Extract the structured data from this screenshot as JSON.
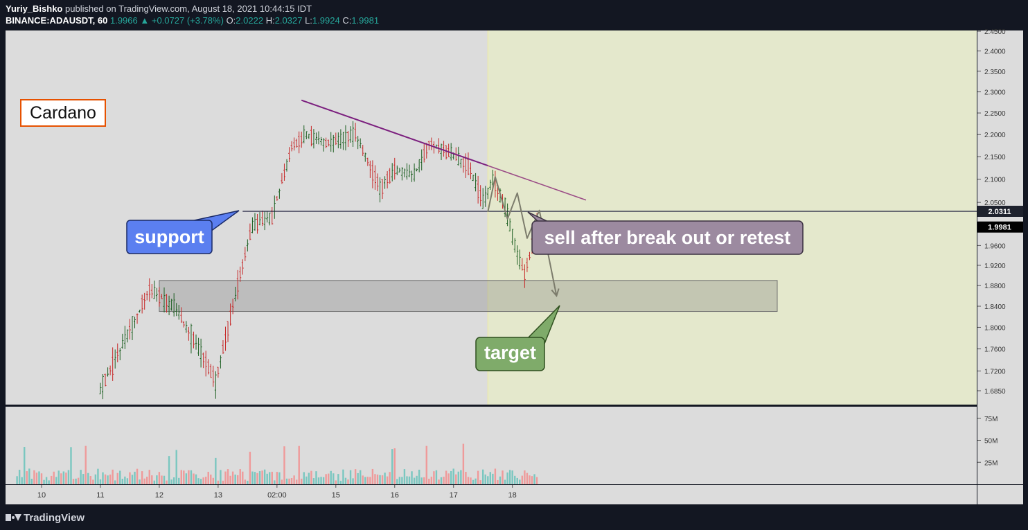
{
  "header": {
    "author": "Yuriy_Bishko",
    "published_text": "published on TradingView.com, August 18, 2021 10:44:15 IDT",
    "symbol": "BINANCE:ADAUSDT, 60",
    "last": "1.9966",
    "change": "▲ +0.0727 (+3.78%)",
    "o_label": "O:",
    "o": "2.0222",
    "h_label": "H:",
    "h": "2.0327",
    "l_label": "L:",
    "l": "1.9924",
    "c_label": "C:",
    "c": "1.9981"
  },
  "footer": {
    "brand": "TradingView"
  },
  "colors": {
    "background": "#131722",
    "pane": "#dcdcdc",
    "highlight": "#e4e8cc",
    "up": "#1b5e20",
    "down": "#c62828",
    "vol_up": "#7ac7c0",
    "vol_down": "#ef9a9a",
    "trendline": "#7b1f7e",
    "support_line": "#1e1e3c",
    "cardano_border": "#e65100",
    "support_bubble": "#5b7ff0",
    "sell_bubble": "#9c8aa0",
    "target_bubble": "#7fab6a"
  },
  "chart_data": {
    "type": "candlestick",
    "symbol": "BINANCE:ADAUSDT",
    "interval": "60",
    "price_axis": {
      "scale": "log",
      "ticks": [
        "2.4500",
        "2.4000",
        "2.3500",
        "2.3000",
        "2.2500",
        "2.2000",
        "2.1500",
        "2.1000",
        "2.0500",
        "1.9600",
        "1.9200",
        "1.8800",
        "1.8400",
        "1.8000",
        "1.7600",
        "1.7200",
        "1.6850"
      ],
      "range": [
        1.675,
        2.46
      ],
      "line_value_label": "2.0311",
      "last_price_label": "1.9981"
    },
    "volume_axis": {
      "ticks": [
        "75M",
        "50M",
        "25M"
      ],
      "range": [
        0,
        90
      ]
    },
    "time_axis": {
      "ticks": [
        "10",
        "11",
        "12",
        "13",
        "02:00",
        "15",
        "16",
        "17",
        "18"
      ]
    },
    "anchors": [
      {
        "t": "2021-08-11 00:00",
        "price": 1.685
      },
      {
        "t": "2021-08-11 20:00",
        "price": 1.87
      },
      {
        "t": "2021-08-12 06:00",
        "price": 1.84
      },
      {
        "t": "2021-08-12 16:00",
        "price": 1.76
      },
      {
        "t": "2021-08-12 23:00",
        "price": 1.7
      },
      {
        "t": "2021-08-13 07:00",
        "price": 1.86
      },
      {
        "t": "2021-08-13 14:00",
        "price": 2.0
      },
      {
        "t": "2021-08-13 22:00",
        "price": 2.02
      },
      {
        "t": "2021-08-14 06:00",
        "price": 2.17
      },
      {
        "t": "2021-08-14 12:00",
        "price": 2.2
      },
      {
        "t": "2021-08-14 20:00",
        "price": 2.18
      },
      {
        "t": "2021-08-15 08:00",
        "price": 2.2
      },
      {
        "t": "2021-08-15 18:00",
        "price": 2.08
      },
      {
        "t": "2021-08-16 00:00",
        "price": 2.12
      },
      {
        "t": "2021-08-16 08:00",
        "price": 2.11
      },
      {
        "t": "2021-08-16 14:00",
        "price": 2.18
      },
      {
        "t": "2021-08-16 22:00",
        "price": 2.16
      },
      {
        "t": "2021-08-17 06:00",
        "price": 2.13
      },
      {
        "t": "2021-08-17 12:00",
        "price": 2.05
      },
      {
        "t": "2021-08-17 16:00",
        "price": 2.1
      },
      {
        "t": "2021-08-17 21:00",
        "price": 2.04
      },
      {
        "t": "2021-08-18 01:00",
        "price": 1.96
      },
      {
        "t": "2021-08-18 05:00",
        "price": 1.9
      },
      {
        "t": "2021-08-18 10:00",
        "price": 1.998
      }
    ],
    "trendline": {
      "from": {
        "t": "2021-08-14 10:00",
        "price": 2.28
      },
      "to": {
        "t": "2021-08-19 06:00",
        "price": 2.055
      }
    },
    "support_level": {
      "price": 2.0311,
      "from_t": "2021-08-13 10:00"
    },
    "target_zone": {
      "low": 1.83,
      "high": 1.89,
      "from_t": "2021-08-12 00:00",
      "to_t": "2021-08-22 12:00"
    },
    "projection_from_t": "2021-08-17 14:00",
    "projection": [
      {
        "t": "2021-08-17 14:00",
        "price": 2.03
      },
      {
        "t": "2021-08-17 17:00",
        "price": 2.105
      },
      {
        "t": "2021-08-17 22:00",
        "price": 2.015
      },
      {
        "t": "2021-08-18 02:00",
        "price": 2.07
      },
      {
        "t": "2021-08-18 06:00",
        "price": 1.975
      },
      {
        "t": "2021-08-18 11:00",
        "price": 2.033
      },
      {
        "t": "2021-08-18 18:00",
        "price": 1.86
      }
    ],
    "annotations": {
      "title": "Cardano",
      "support": "support",
      "sell": "sell after break out or retest",
      "target": "target"
    }
  }
}
